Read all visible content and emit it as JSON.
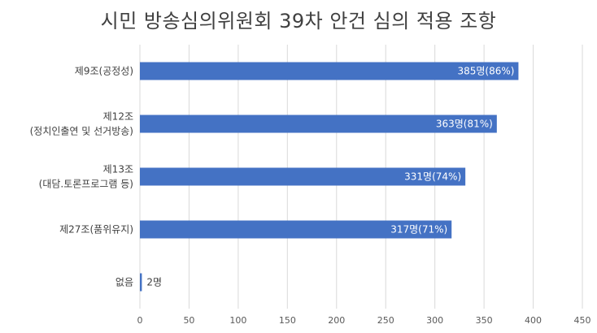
{
  "chart_data": {
    "type": "bar",
    "orientation": "horizontal",
    "title": "시민 방송심의위원회 39차 안건 심의 적용 조항",
    "categories": [
      [
        "제9조(공정성)"
      ],
      [
        "제12조",
        "(정치인출연 및 선거방송)"
      ],
      [
        "제13조",
        "(대담.토론프로그램 등)"
      ],
      [
        "제27조(품위유지)"
      ],
      [
        "없음"
      ]
    ],
    "values": [
      385,
      363,
      331,
      317,
      2
    ],
    "data_labels": [
      "385명(86%)",
      "363명(81%)",
      "331명(74%)",
      "317명(71%)",
      "2명"
    ],
    "xlim": [
      0,
      450
    ],
    "xticks": [
      0,
      50,
      100,
      150,
      200,
      250,
      300,
      350,
      400,
      450
    ],
    "xlabel": "",
    "ylabel": "",
    "grid": "vertical",
    "bar_color": "#4472C4"
  }
}
